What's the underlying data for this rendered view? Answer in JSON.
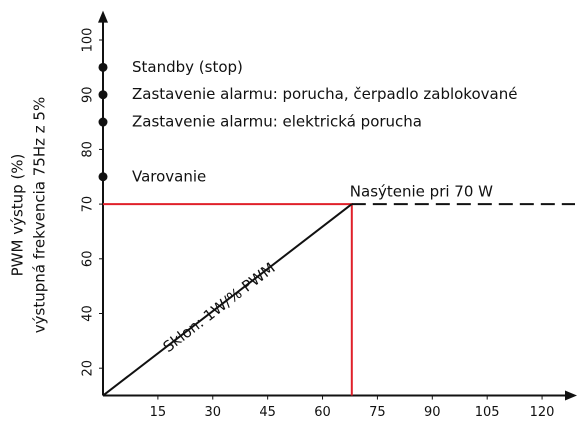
{
  "chart_data": {
    "type": "line",
    "y_label": [
      "PWM výstup (%)",
      "výstupná frekvencia 75Hz z 5%"
    ],
    "xlim": [
      0,
      129
    ],
    "ylim": [
      10,
      105
    ],
    "xticks": [
      15,
      30,
      45,
      60,
      75,
      90,
      105,
      120
    ],
    "yticks": [
      100,
      90,
      80,
      70,
      60,
      40,
      20
    ],
    "markers": [
      {
        "label": "Standby (stop)",
        "y": 95
      },
      {
        "label": "Zastavenie alarmu: porucha, čerpadlo zablokované",
        "y": 90
      },
      {
        "label": "Zastavenie alarmu: elektrická porucha",
        "y": 85
      },
      {
        "label": "Varovanie",
        "y": 75
      }
    ],
    "saturation_label": "Nasýtenie pri 70 W",
    "slope_label": "Sklon: 1W/% PWM",
    "series": [
      {
        "color": "#e0202a",
        "x": [
          0,
          68,
          68
        ],
        "values": [
          70,
          70,
          10
        ],
        "dashed": false
      },
      {
        "color": "#111111",
        "x": [
          0,
          68
        ],
        "values": [
          10,
          70
        ],
        "dashed": false
      },
      {
        "color": "#111111",
        "x": [
          68,
          129
        ],
        "values": [
          70,
          70
        ],
        "dashed": true
      }
    ]
  }
}
